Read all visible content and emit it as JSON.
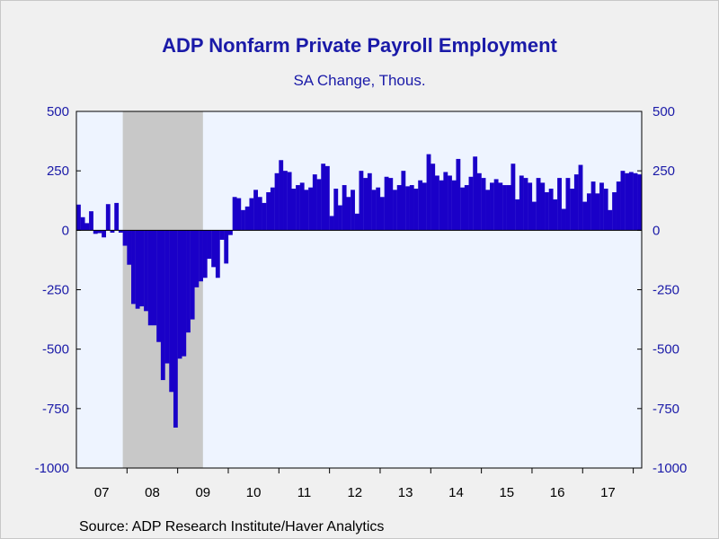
{
  "chart_data": {
    "type": "bar",
    "title": "ADP Nonfarm Private Payroll Employment",
    "subtitle": "SA Change, Thous.",
    "source": "Source:  ADP Research Institute/Haver Analytics",
    "ylim": [
      -1000,
      500
    ],
    "y_ticks": [
      500,
      250,
      0,
      -250,
      -500,
      -750,
      -1000
    ],
    "y_tick_labels": [
      "500",
      "250",
      "0",
      "-250",
      "-500",
      "-750",
      "-1000"
    ],
    "x_tick_labels": [
      "07",
      "08",
      "09",
      "10",
      "11",
      "12",
      "13",
      "14",
      "15",
      "16",
      "17"
    ],
    "x_start": "2007-01",
    "x_end": "2018-02",
    "recession": {
      "start": "2007-12",
      "end": "2009-06"
    },
    "colors": {
      "bars": "#1a00c8",
      "axis_text": "#1a1aa8",
      "plot_background": "#eef4ff",
      "recession_shade": "#c8c8c8",
      "page_background": "#f0f0f0"
    },
    "series": [
      {
        "months": [
          "2007-01",
          "2007-02",
          "2007-03",
          "2007-04",
          "2007-05",
          "2007-06",
          "2007-07",
          "2007-08",
          "2007-09",
          "2007-10",
          "2007-11",
          "2007-12",
          "2008-01",
          "2008-02",
          "2008-03",
          "2008-04",
          "2008-05",
          "2008-06",
          "2008-07",
          "2008-08",
          "2008-09",
          "2008-10",
          "2008-11",
          "2008-12",
          "2009-01",
          "2009-02",
          "2009-03",
          "2009-04",
          "2009-05",
          "2009-06",
          "2009-07",
          "2009-08",
          "2009-09",
          "2009-10",
          "2009-11",
          "2009-12",
          "2010-01",
          "2010-02",
          "2010-03",
          "2010-04",
          "2010-05",
          "2010-06",
          "2010-07",
          "2010-08",
          "2010-09",
          "2010-10",
          "2010-11",
          "2010-12",
          "2011-01",
          "2011-02",
          "2011-03",
          "2011-04",
          "2011-05",
          "2011-06",
          "2011-07",
          "2011-08",
          "2011-09",
          "2011-10",
          "2011-11",
          "2011-12",
          "2012-01",
          "2012-02",
          "2012-03",
          "2012-04",
          "2012-05",
          "2012-06",
          "2012-07",
          "2012-08",
          "2012-09",
          "2012-10",
          "2012-11",
          "2012-12",
          "2013-01",
          "2013-02",
          "2013-03",
          "2013-04",
          "2013-05",
          "2013-06",
          "2013-07",
          "2013-08",
          "2013-09",
          "2013-10",
          "2013-11",
          "2013-12",
          "2014-01",
          "2014-02",
          "2014-03",
          "2014-04",
          "2014-05",
          "2014-06",
          "2014-07",
          "2014-08",
          "2014-09",
          "2014-10",
          "2014-11",
          "2014-12",
          "2015-01",
          "2015-02",
          "2015-03",
          "2015-04",
          "2015-05",
          "2015-06",
          "2015-07",
          "2015-08",
          "2015-09",
          "2015-10",
          "2015-11",
          "2015-12",
          "2016-01",
          "2016-02",
          "2016-03",
          "2016-04",
          "2016-05",
          "2016-06",
          "2016-07",
          "2016-08",
          "2016-09",
          "2016-10",
          "2016-11",
          "2016-12",
          "2017-01",
          "2017-02",
          "2017-03",
          "2017-04",
          "2017-05",
          "2017-06",
          "2017-07",
          "2017-08",
          "2017-09",
          "2017-10",
          "2017-11",
          "2017-12",
          "2018-01",
          "2018-02"
        ],
        "values": [
          108,
          55,
          30,
          80,
          -15,
          -12,
          -30,
          110,
          -10,
          115,
          -10,
          -65,
          -145,
          -310,
          -330,
          -320,
          -340,
          -400,
          -400,
          -470,
          -630,
          -560,
          -680,
          -830,
          -540,
          -530,
          -430,
          -375,
          -240,
          -215,
          -200,
          -120,
          -155,
          -200,
          -40,
          -140,
          -20,
          140,
          135,
          85,
          100,
          135,
          170,
          140,
          115,
          160,
          180,
          240,
          295,
          250,
          245,
          175,
          190,
          200,
          170,
          180,
          235,
          215,
          280,
          270,
          60,
          175,
          105,
          190,
          140,
          170,
          70,
          250,
          220,
          240,
          170,
          180,
          140,
          225,
          220,
          170,
          190,
          250,
          185,
          190,
          175,
          210,
          200,
          320,
          280,
          230,
          210,
          245,
          230,
          210,
          300,
          180,
          190,
          225,
          310,
          240,
          220,
          170,
          200,
          215,
          200,
          190,
          190,
          280,
          130,
          230,
          220,
          200,
          120,
          220,
          200,
          160,
          175,
          130,
          220,
          90,
          220,
          175,
          235,
          275,
          120,
          155,
          205,
          155,
          200,
          175,
          85,
          160,
          205,
          250,
          240,
          245,
          240,
          235
        ]
      }
    ]
  }
}
